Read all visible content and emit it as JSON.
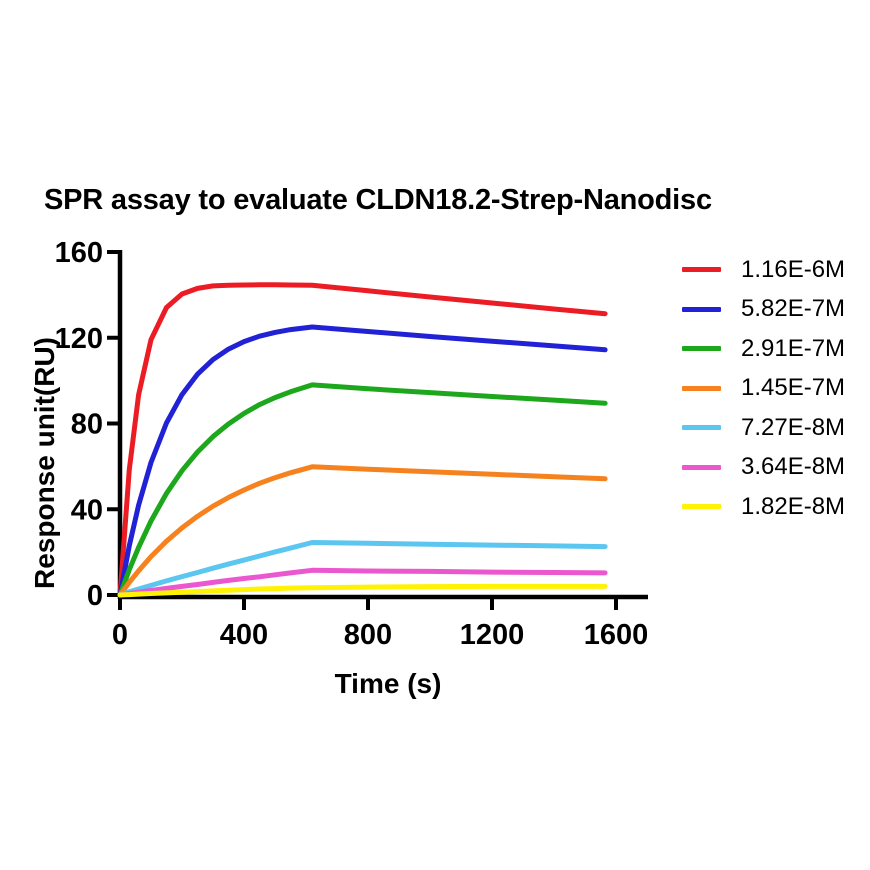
{
  "chart_data": {
    "type": "line",
    "title": "SPR assay to evaluate CLDN18.2-Strep-Nanodisc",
    "xlabel": "Time (s)",
    "ylabel": "Response unit(RU)",
    "xlim": [
      0,
      1700
    ],
    "ylim": [
      0,
      160
    ],
    "x_ticks": [
      0,
      400,
      800,
      1200,
      1600
    ],
    "y_ticks": [
      0,
      40,
      80,
      120,
      160
    ],
    "grid": false,
    "legend_position": "right",
    "axis_color": "#000000",
    "x": [
      0,
      30,
      60,
      100,
      150,
      200,
      250,
      300,
      350,
      400,
      450,
      500,
      550,
      620,
      800,
      1000,
      1200,
      1400,
      1565
    ],
    "series": [
      {
        "name": "1.16E-6M",
        "color": "#EC1C24",
        "values": [
          0,
          58.5,
          93.4,
          119.1,
          134.1,
          140.4,
          143.0,
          144.2,
          144.5,
          144.6,
          144.7,
          144.7,
          144.6,
          144.5,
          141.9,
          139.0,
          136.2,
          133.4,
          131.2
        ]
      },
      {
        "name": "5.82E-7M",
        "color": "#2121D5",
        "values": [
          0,
          23.0,
          41.9,
          61.8,
          80.3,
          93.5,
          103.0,
          109.8,
          114.7,
          118.2,
          120.7,
          122.5,
          123.8,
          125.0,
          122.9,
          120.6,
          118.4,
          116.2,
          114.4
        ]
      },
      {
        "name": "2.91E-7M",
        "color": "#1CA71C",
        "values": [
          0,
          11.8,
          22.2,
          34.5,
          47.4,
          58.0,
          66.7,
          73.9,
          79.8,
          84.7,
          88.8,
          92.1,
          94.8,
          98.0,
          96.2,
          94.4,
          92.6,
          90.9,
          89.4
        ]
      },
      {
        "name": "1.45E-7M",
        "color": "#F6821F",
        "values": [
          0,
          5.9,
          11.3,
          17.9,
          25.1,
          31.3,
          36.7,
          41.4,
          45.5,
          49.0,
          52.1,
          54.7,
          57.0,
          59.8,
          58.7,
          57.5,
          56.3,
          55.2,
          54.2
        ]
      },
      {
        "name": "7.27E-8M",
        "color": "#5BC6F0",
        "values": [
          0,
          1.5,
          2.8,
          4.5,
          6.6,
          8.6,
          10.5,
          12.5,
          14.4,
          16.3,
          18.2,
          20.1,
          21.9,
          24.5,
          24.1,
          23.7,
          23.3,
          22.9,
          22.6
        ]
      },
      {
        "name": "3.64E-8M",
        "color": "#EB57CE",
        "values": [
          0,
          0.7,
          1.3,
          2.1,
          3.1,
          4.0,
          4.9,
          5.9,
          6.8,
          7.7,
          8.5,
          9.4,
          10.3,
          11.5,
          11.2,
          11.0,
          10.7,
          10.5,
          10.3
        ]
      },
      {
        "name": "1.82E-8M",
        "color": "#FFF203",
        "values": [
          0,
          0.2,
          0.4,
          0.7,
          1.0,
          1.3,
          1.6,
          1.9,
          2.2,
          2.5,
          2.8,
          3.0,
          3.2,
          3.4,
          3.7,
          3.9,
          4.0,
          4.0,
          4.0
        ]
      }
    ]
  }
}
